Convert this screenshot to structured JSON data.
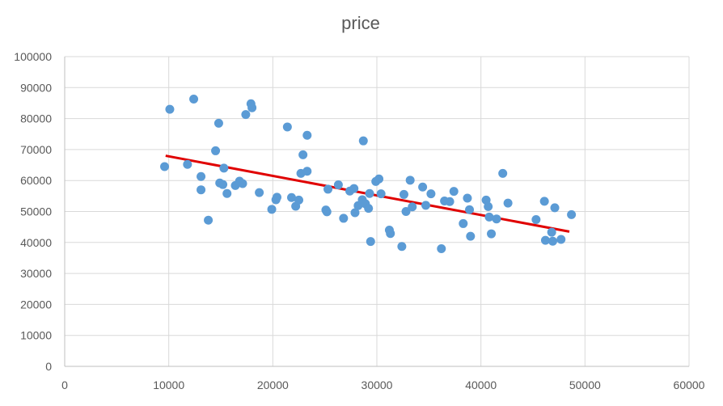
{
  "chart_data": {
    "type": "scatter",
    "title": "price",
    "xlabel": "",
    "ylabel": "",
    "xlim": [
      0,
      60000
    ],
    "ylim": [
      0,
      100000
    ],
    "x_ticks": [
      "0",
      "10000",
      "20000",
      "30000",
      "40000",
      "50000",
      "60000"
    ],
    "y_ticks": [
      "0",
      "10000",
      "20000",
      "30000",
      "40000",
      "50000",
      "60000",
      "70000",
      "80000",
      "90000",
      "100000"
    ],
    "grid": true,
    "legend": "none",
    "colors": {
      "points": "#5b9bd5",
      "trendline": "#e00000",
      "text": "#595959",
      "grid": "#d9d9d9"
    },
    "trendline": {
      "type": "linear",
      "x": [
        9700,
        48500
      ],
      "y": [
        68000,
        43500
      ]
    },
    "series": [
      {
        "points": [
          [
            9600,
            64500
          ],
          [
            10100,
            83000
          ],
          [
            11800,
            65200
          ],
          [
            12400,
            86300
          ],
          [
            13100,
            61300
          ],
          [
            13100,
            57000
          ],
          [
            13800,
            47200
          ],
          [
            14500,
            69600
          ],
          [
            14800,
            78500
          ],
          [
            14900,
            59200
          ],
          [
            15200,
            58700
          ],
          [
            15300,
            64000
          ],
          [
            15600,
            55800
          ],
          [
            16400,
            58400
          ],
          [
            16800,
            59800
          ],
          [
            17100,
            59000
          ],
          [
            17400,
            81300
          ],
          [
            17900,
            84800
          ],
          [
            18000,
            83500
          ],
          [
            18700,
            56100
          ],
          [
            19900,
            50700
          ],
          [
            20300,
            53800
          ],
          [
            20400,
            54600
          ],
          [
            21400,
            77300
          ],
          [
            21800,
            54500
          ],
          [
            22200,
            51700
          ],
          [
            22500,
            53700
          ],
          [
            22700,
            62300
          ],
          [
            22900,
            68300
          ],
          [
            23300,
            63000
          ],
          [
            23300,
            74600
          ],
          [
            25100,
            50500
          ],
          [
            25300,
            57200
          ],
          [
            25200,
            49900
          ],
          [
            26300,
            58600
          ],
          [
            26800,
            47800
          ],
          [
            27400,
            56600
          ],
          [
            27800,
            57400
          ],
          [
            27900,
            49600
          ],
          [
            28200,
            51900
          ],
          [
            28600,
            53800
          ],
          [
            28700,
            72800
          ],
          [
            28900,
            52500
          ],
          [
            29200,
            51000
          ],
          [
            29300,
            55800
          ],
          [
            29400,
            40300
          ],
          [
            29900,
            59700
          ],
          [
            30200,
            60500
          ],
          [
            30400,
            55700
          ],
          [
            31200,
            44000
          ],
          [
            31300,
            42900
          ],
          [
            32400,
            38700
          ],
          [
            32600,
            55500
          ],
          [
            32800,
            50000
          ],
          [
            33200,
            60100
          ],
          [
            33400,
            51500
          ],
          [
            34400,
            57900
          ],
          [
            34700,
            52000
          ],
          [
            35200,
            55700
          ],
          [
            36200,
            38000
          ],
          [
            36500,
            53400
          ],
          [
            37000,
            53200
          ],
          [
            37400,
            56500
          ],
          [
            38300,
            46100
          ],
          [
            38700,
            54300
          ],
          [
            38900,
            50600
          ],
          [
            39000,
            42000
          ],
          [
            40500,
            53700
          ],
          [
            40700,
            51600
          ],
          [
            40800,
            48200
          ],
          [
            41000,
            42800
          ],
          [
            41500,
            47600
          ],
          [
            42100,
            62300
          ],
          [
            42600,
            52700
          ],
          [
            45300,
            47400
          ],
          [
            46100,
            53300
          ],
          [
            46200,
            40700
          ],
          [
            46800,
            43300
          ],
          [
            46900,
            40400
          ],
          [
            47100,
            51200
          ],
          [
            47700,
            41000
          ],
          [
            48700,
            49000
          ]
        ]
      }
    ]
  }
}
